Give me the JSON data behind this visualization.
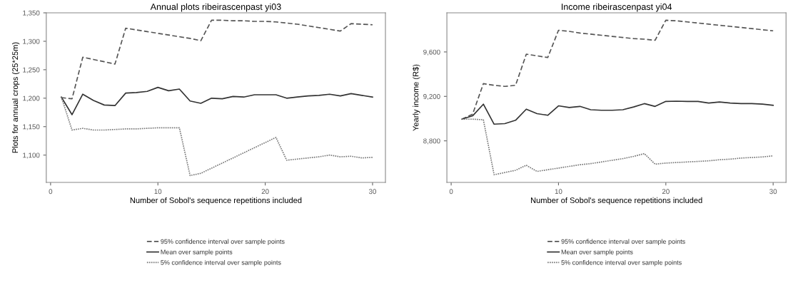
{
  "chart_data": [
    {
      "type": "line",
      "title": "Annual plots ribeirascenpast yi03",
      "xlabel": "Number of Sobol's sequence repetitions included",
      "ylabel": "Plots for annual crops (25*25m)",
      "x": [
        1,
        2,
        3,
        4,
        5,
        6,
        7,
        8,
        9,
        10,
        11,
        12,
        13,
        14,
        15,
        16,
        17,
        18,
        19,
        20,
        21,
        22,
        23,
        24,
        25,
        26,
        27,
        28,
        29,
        30
      ],
      "series": [
        {
          "name": "95% confidence interval over sample points",
          "color": "#555555",
          "line_style": "dashed",
          "values": [
            1201,
            1199,
            1272,
            1268,
            1264,
            1260,
            1323,
            1320,
            1317,
            1314,
            1311,
            1308,
            1305,
            1301,
            1337,
            1337,
            1336,
            1336,
            1335,
            1335,
            1334,
            1332,
            1330,
            1327,
            1324,
            1321,
            1318,
            1331,
            1330,
            1329
          ]
        },
        {
          "name": "Mean over sample points",
          "color": "#333333",
          "line_style": "solid",
          "values": [
            1202,
            1171,
            1207,
            1196,
            1188,
            1187,
            1209,
            1210,
            1212,
            1219,
            1213,
            1216,
            1195,
            1191,
            1200,
            1199,
            1203,
            1202,
            1206,
            1206,
            1206,
            1200,
            1202,
            1204,
            1205,
            1207,
            1204,
            1208,
            1205,
            1202
          ]
        },
        {
          "name": "5% confidence interval over sample points",
          "color": "#777777",
          "line_style": "dotted",
          "values": [
            1202,
            1144,
            1147,
            1144,
            1144,
            1145,
            1146,
            1146,
            1147,
            1148,
            1148,
            1148,
            1064,
            1068,
            1077,
            1086,
            1095,
            1104,
            1113,
            1122,
            1131,
            1091,
            1093,
            1095,
            1097,
            1100,
            1097,
            1098,
            1095,
            1096
          ]
        }
      ],
      "xlim": [
        -0.4,
        31.2
      ],
      "xticks": [
        0,
        10,
        20,
        30
      ],
      "ylim": [
        1052,
        1350
      ],
      "yticks": [
        {
          "value": 1100,
          "label": "1,100"
        },
        {
          "value": 1150,
          "label": "1,150"
        },
        {
          "value": 1200,
          "label": "1,200"
        },
        {
          "value": 1250,
          "label": "1,250"
        },
        {
          "value": 1300,
          "label": "1,300"
        },
        {
          "value": 1350,
          "label": "1,350"
        }
      ],
      "grid": false,
      "legend": "bottom",
      "marker": "none"
    },
    {
      "type": "line",
      "title": "Income ribeirascenpast yi04",
      "xlabel": "Number of Sobol's sequence repetitions included",
      "ylabel": "Yearly income (R$)",
      "x": [
        1,
        2,
        3,
        4,
        5,
        6,
        7,
        8,
        9,
        10,
        11,
        12,
        13,
        14,
        15,
        16,
        17,
        18,
        19,
        20,
        21,
        22,
        23,
        24,
        25,
        26,
        27,
        28,
        29,
        30
      ],
      "series": [
        {
          "name": "95% confidence interval over sample points",
          "color": "#555555",
          "line_style": "dashed",
          "values": [
            8995,
            9040,
            9315,
            9300,
            9290,
            9300,
            9580,
            9565,
            9550,
            9795,
            9785,
            9770,
            9760,
            9750,
            9740,
            9730,
            9720,
            9715,
            9705,
            9885,
            9880,
            9870,
            9860,
            9850,
            9840,
            9830,
            9820,
            9810,
            9800,
            9790
          ]
        },
        {
          "name": "Mean over sample points",
          "color": "#333333",
          "line_style": "solid",
          "values": [
            8995,
            9025,
            9130,
            8950,
            8955,
            8985,
            9085,
            9045,
            9030,
            9115,
            9100,
            9110,
            9080,
            9075,
            9075,
            9080,
            9105,
            9135,
            9110,
            9155,
            9157,
            9155,
            9155,
            9140,
            9150,
            9140,
            9135,
            9135,
            9130,
            9120
          ]
        },
        {
          "name": "5% confidence interval over sample points",
          "color": "#777777",
          "line_style": "dotted",
          "values": [
            8995,
            8995,
            8990,
            8495,
            8515,
            8535,
            8580,
            8525,
            8540,
            8555,
            8570,
            8585,
            8595,
            8610,
            8625,
            8640,
            8660,
            8685,
            8590,
            8600,
            8605,
            8610,
            8615,
            8620,
            8630,
            8635,
            8645,
            8650,
            8655,
            8665
          ]
        }
      ],
      "xlim": [
        -0.4,
        31.2
      ],
      "xticks": [
        0,
        10,
        20,
        30
      ],
      "ylim": [
        8426,
        9952
      ],
      "yticks": [
        {
          "value": 8800,
          "label": "8,800"
        },
        {
          "value": 9200,
          "label": "9,200"
        },
        {
          "value": 9600,
          "label": "9,600"
        }
      ],
      "grid": false,
      "legend": "bottom",
      "marker": "none"
    }
  ]
}
